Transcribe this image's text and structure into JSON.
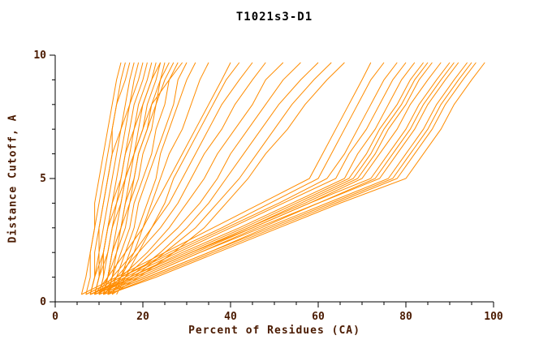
{
  "chart_data": {
    "type": "line",
    "title": "T1021s3-D1",
    "xlabel": "Percent of Residues (CA)",
    "ylabel": "Distance Cutoff, A",
    "xlim": [
      0,
      100
    ],
    "ylim": [
      0,
      10
    ],
    "x_major_ticks": [
      0,
      20,
      40,
      60,
      80,
      100
    ],
    "x_minor_step": 5,
    "y_major_ticks": [
      0,
      5,
      10
    ],
    "y_minor_step": 1,
    "line_color": "#FF8C00",
    "axis_color": "#000000",
    "text_color": "#4a1a00",
    "y_levels": [
      0.3,
      1,
      2,
      3,
      4,
      5,
      6,
      7,
      8,
      9,
      9.7
    ],
    "series": [
      [
        7,
        8,
        8,
        9,
        9,
        10,
        11,
        12,
        13,
        14,
        15
      ],
      [
        8,
        9,
        9,
        10,
        11,
        12,
        13,
        13,
        14,
        16,
        17
      ],
      [
        8,
        9,
        10,
        10,
        11,
        12,
        13,
        15,
        16,
        17,
        18
      ],
      [
        9,
        10,
        10,
        11,
        12,
        13,
        14,
        15,
        17,
        18,
        19
      ],
      [
        9,
        10,
        11,
        12,
        13,
        14,
        15,
        16,
        17,
        19,
        20
      ],
      [
        10,
        11,
        11,
        12,
        14,
        15,
        16,
        17,
        18,
        20,
        21
      ],
      [
        10,
        11,
        12,
        13,
        14,
        16,
        17,
        18,
        19,
        21,
        22
      ],
      [
        11,
        12,
        13,
        14,
        15,
        16,
        18,
        19,
        20,
        22,
        23
      ],
      [
        11,
        12,
        13,
        15,
        16,
        17,
        18,
        20,
        21,
        23,
        24
      ],
      [
        12,
        13,
        14,
        15,
        17,
        18,
        19,
        21,
        22,
        24,
        25
      ],
      [
        10,
        12,
        13,
        15,
        16,
        18,
        19,
        21,
        23,
        24,
        26
      ],
      [
        11,
        12,
        14,
        16,
        17,
        19,
        20,
        22,
        23,
        25,
        27
      ],
      [
        12,
        13,
        15,
        17,
        18,
        20,
        22,
        23,
        25,
        26,
        28
      ],
      [
        12,
        14,
        16,
        18,
        19,
        21,
        23,
        25,
        27,
        28,
        30
      ],
      [
        13,
        15,
        17,
        19,
        21,
        23,
        24,
        26,
        28,
        30,
        32
      ],
      [
        13,
        15,
        18,
        20,
        22,
        24,
        26,
        29,
        31,
        33,
        35
      ],
      [
        6,
        7,
        8,
        9,
        10,
        11,
        12,
        13,
        14,
        15,
        16
      ],
      [
        8,
        9,
        11,
        12,
        13,
        15,
        16,
        18,
        20,
        22,
        24
      ],
      [
        9,
        10,
        12,
        13,
        15,
        16,
        18,
        20,
        22,
        26,
        29
      ],
      [
        9,
        12,
        16,
        20,
        23,
        26,
        29,
        32,
        35,
        38,
        40
      ],
      [
        14,
        16,
        19,
        22,
        25,
        27,
        30,
        33,
        36,
        39,
        42
      ],
      [
        10,
        13,
        18,
        22,
        26,
        29,
        32,
        35,
        38,
        42,
        45
      ],
      [
        10,
        14,
        19,
        24,
        28,
        31,
        34,
        38,
        41,
        45,
        48
      ],
      [
        11,
        15,
        21,
        26,
        30,
        34,
        37,
        41,
        45,
        48,
        52
      ],
      [
        11,
        16,
        22,
        28,
        33,
        37,
        40,
        44,
        48,
        52,
        56
      ],
      [
        12,
        17,
        24,
        30,
        35,
        39,
        43,
        47,
        51,
        56,
        60
      ],
      [
        12,
        18,
        25,
        32,
        37,
        42,
        46,
        50,
        54,
        59,
        63
      ],
      [
        13,
        19,
        27,
        34,
        39,
        44,
        48,
        53,
        57,
        62,
        66
      ],
      [
        6,
        14,
        25,
        36,
        47,
        58,
        61,
        64,
        67,
        70,
        72
      ],
      [
        7,
        15,
        26,
        38,
        49,
        60,
        63,
        66,
        69,
        72,
        75
      ],
      [
        7,
        15,
        27,
        39,
        51,
        62,
        66,
        69,
        72,
        75,
        78
      ],
      [
        8,
        16,
        28,
        40,
        52,
        64,
        67,
        71,
        74,
        77,
        80
      ],
      [
        8,
        17,
        29,
        42,
        54,
        66,
        69,
        73,
        76,
        79,
        82
      ],
      [
        8,
        17,
        30,
        43,
        55,
        67,
        71,
        74,
        78,
        81,
        84
      ],
      [
        9,
        18,
        31,
        44,
        56,
        68,
        72,
        75,
        79,
        82,
        85
      ],
      [
        9,
        18,
        31,
        44,
        57,
        69,
        73,
        76,
        80,
        83,
        86
      ],
      [
        9,
        19,
        32,
        45,
        58,
        70,
        74,
        78,
        81,
        85,
        88
      ],
      [
        8,
        18,
        31,
        45,
        58,
        72,
        76,
        80,
        83,
        87,
        90
      ],
      [
        10,
        20,
        33,
        46,
        60,
        73,
        77,
        81,
        84,
        88,
        91
      ],
      [
        10,
        20,
        33,
        47,
        60,
        74,
        78,
        82,
        85,
        89,
        92
      ],
      [
        11,
        21,
        35,
        48,
        62,
        76,
        80,
        84,
        87,
        91,
        94
      ],
      [
        11,
        21,
        35,
        49,
        63,
        77,
        81,
        85,
        88,
        92,
        95
      ],
      [
        12,
        22,
        36,
        50,
        64,
        78,
        82,
        86,
        89,
        93,
        96
      ],
      [
        12,
        23,
        37,
        51,
        65,
        80,
        84,
        88,
        91,
        95,
        98
      ]
    ]
  }
}
